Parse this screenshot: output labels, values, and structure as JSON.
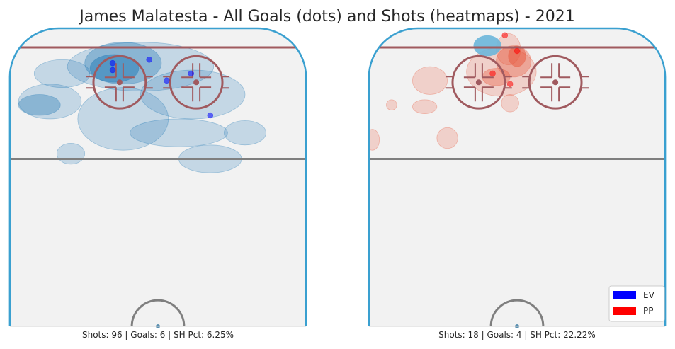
{
  "title": "James Malatesta - All Goals (dots) and Shots (heatmaps) - 2021",
  "colors": {
    "rink_fill": "#f2f2f2",
    "boards": "#3aa0d0",
    "red_line": "#a05a5f",
    "center_line": "#7f7f7f",
    "ev": "#0000ff",
    "pp": "#ff0000",
    "ev_heat": "#1f77b4",
    "pp_heat": "#e8553a"
  },
  "chart_data": [
    {
      "type": "scatter",
      "panel": "EV",
      "caption": "Shots: 96 | Goals: 6 | SH Pct: 6.25%",
      "goals_xy_ft": [
        [
          -26,
          80
        ],
        [
          -5,
          82
        ],
        [
          -26,
          76
        ],
        [
          5,
          70
        ],
        [
          19,
          74
        ],
        [
          30,
          50
        ]
      ],
      "heat_blobs_ft": [
        {
          "x": -25,
          "y": 77,
          "rx": 14,
          "ry": 8,
          "level": 3
        },
        {
          "x": -20,
          "y": 80,
          "rx": 22,
          "ry": 12,
          "level": 2
        },
        {
          "x": -10,
          "y": 78,
          "rx": 42,
          "ry": 14,
          "level": 1
        },
        {
          "x": -68,
          "y": 56,
          "rx": 12,
          "ry": 6,
          "level": 2
        },
        {
          "x": -62,
          "y": 58,
          "rx": 18,
          "ry": 10,
          "level": 1
        },
        {
          "x": -55,
          "y": 74,
          "rx": 16,
          "ry": 8,
          "level": 1
        },
        {
          "x": -20,
          "y": 48,
          "rx": 26,
          "ry": 18,
          "level": 1
        },
        {
          "x": 20,
          "y": 62,
          "rx": 30,
          "ry": 14,
          "level": 1
        },
        {
          "x": 12,
          "y": 40,
          "rx": 28,
          "ry": 8,
          "level": 1
        },
        {
          "x": 30,
          "y": 25,
          "rx": 18,
          "ry": 8,
          "level": 1
        },
        {
          "x": 50,
          "y": 40,
          "rx": 12,
          "ry": 7,
          "level": 1
        },
        {
          "x": -50,
          "y": 28,
          "rx": 8,
          "ry": 6,
          "level": 1
        }
      ]
    },
    {
      "type": "scatter",
      "panel": "PP",
      "caption": "Shots: 18 | Goals: 4 | SH Pct: 22.22%",
      "goals_xy_ft": [
        [
          -7,
          96
        ],
        [
          0,
          87
        ],
        [
          -14,
          74
        ],
        [
          -4,
          68
        ]
      ],
      "heat_blobs_ft": [
        {
          "x": 0,
          "y": 84,
          "rx": 5,
          "ry": 6,
          "level": 3
        },
        {
          "x": -2,
          "y": 81,
          "rx": 10,
          "ry": 9,
          "level": 2
        },
        {
          "x": -9,
          "y": 75,
          "rx": 20,
          "ry": 14,
          "level": 1
        },
        {
          "x": -5,
          "y": 88,
          "rx": 7,
          "ry": 9,
          "level": 1
        },
        {
          "x": -12,
          "y": 72,
          "rx": 8,
          "ry": 5,
          "level": 2
        },
        {
          "x": -50,
          "y": 70,
          "rx": 10,
          "ry": 8,
          "level": 1
        },
        {
          "x": -53,
          "y": 55,
          "rx": 7,
          "ry": 4,
          "level": 1
        },
        {
          "x": -4,
          "y": 57,
          "rx": 5,
          "ry": 5,
          "level": 1
        },
        {
          "x": -40,
          "y": 37,
          "rx": 6,
          "ry": 6,
          "level": 1
        },
        {
          "x": -83,
          "y": 36,
          "rx": 4,
          "ry": 6,
          "level": 1
        },
        {
          "x": -72,
          "y": 56,
          "rx": 3,
          "ry": 3,
          "level": 1
        }
      ],
      "extra_blob_ft": {
        "x": -17,
        "y": 90,
        "rx": 8,
        "ry": 6,
        "color": "#6bb6da"
      }
    }
  ],
  "legend": {
    "placement": "bottom-right",
    "items": [
      {
        "label": "EV",
        "color": "#0000ff"
      },
      {
        "label": "PP",
        "color": "#ff0000"
      }
    ]
  }
}
